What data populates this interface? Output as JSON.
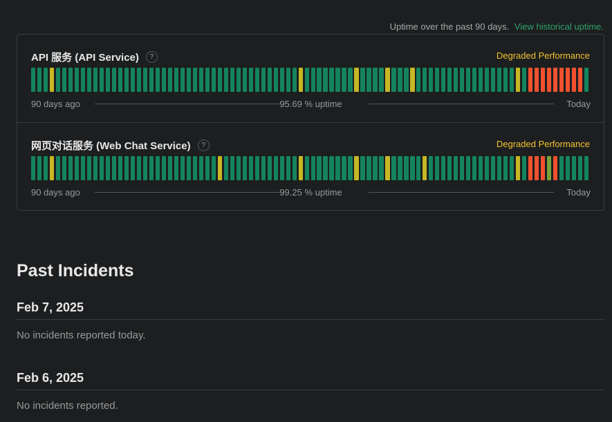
{
  "header": {
    "uptime_caption": "Uptime over the past 90 days.",
    "historical_link": "View historical uptime."
  },
  "colors": {
    "operational": "#14845e",
    "minor": "#c7b824",
    "major": "#f0512f",
    "partial": "#79a33a",
    "degraded_text": "#f4c430",
    "link": "#2ea36b"
  },
  "components": [
    {
      "name": "API 服务 (API Service)",
      "help": "?",
      "status": "Degraded Performance",
      "left_label": "90 days ago",
      "uptime_label": "95.69 % uptime",
      "right_label": "Today",
      "days": [
        "g",
        "g",
        "g",
        "y",
        "g",
        "g",
        "g",
        "g",
        "g",
        "g",
        "g",
        "g",
        "g",
        "g",
        "g",
        "g",
        "g",
        "g",
        "g",
        "g",
        "g",
        "g",
        "g",
        "g",
        "g",
        "g",
        "g",
        "g",
        "g",
        "g",
        "g",
        "g",
        "g",
        "g",
        "g",
        "g",
        "g",
        "g",
        "g",
        "g",
        "g",
        "g",
        "g",
        "y",
        "g",
        "g",
        "g",
        "g",
        "g",
        "g",
        "g",
        "g",
        "y",
        "g",
        "g",
        "g",
        "g",
        "y",
        "g",
        "g",
        "g",
        "y",
        "g",
        "g",
        "g",
        "g",
        "g",
        "g",
        "g",
        "g",
        "g",
        "g",
        "g",
        "g",
        "g",
        "g",
        "g",
        "g",
        "y",
        "g",
        "r",
        "r",
        "r",
        "r",
        "r",
        "r",
        "r",
        "r",
        "r",
        "g"
      ]
    },
    {
      "name": "网页对话服务 (Web Chat Service)",
      "help": "?",
      "status": "Degraded Performance",
      "left_label": "90 days ago",
      "uptime_label": "99.25 % uptime",
      "right_label": "Today",
      "days": [
        "g",
        "g",
        "g",
        "y",
        "g",
        "g",
        "g",
        "g",
        "g",
        "g",
        "g",
        "g",
        "g",
        "g",
        "g",
        "g",
        "g",
        "g",
        "g",
        "g",
        "g",
        "g",
        "g",
        "g",
        "g",
        "g",
        "g",
        "g",
        "g",
        "g",
        "y",
        "g",
        "g",
        "g",
        "g",
        "g",
        "g",
        "g",
        "g",
        "g",
        "g",
        "g",
        "g",
        "y",
        "g",
        "g",
        "g",
        "g",
        "g",
        "g",
        "g",
        "g",
        "y",
        "g",
        "g",
        "g",
        "g",
        "y",
        "g",
        "g",
        "g",
        "g",
        "g",
        "y",
        "g",
        "g",
        "g",
        "g",
        "g",
        "g",
        "g",
        "g",
        "g",
        "g",
        "g",
        "g",
        "g",
        "g",
        "y",
        "g",
        "r",
        "r",
        "r",
        "p",
        "r",
        "g",
        "g",
        "g",
        "g",
        "g"
      ]
    }
  ],
  "past_incidents": {
    "title": "Past Incidents",
    "days": [
      {
        "date": "Feb 7, 2025",
        "message": "No incidents reported today."
      },
      {
        "date": "Feb 6, 2025",
        "message": "No incidents reported."
      }
    ]
  }
}
